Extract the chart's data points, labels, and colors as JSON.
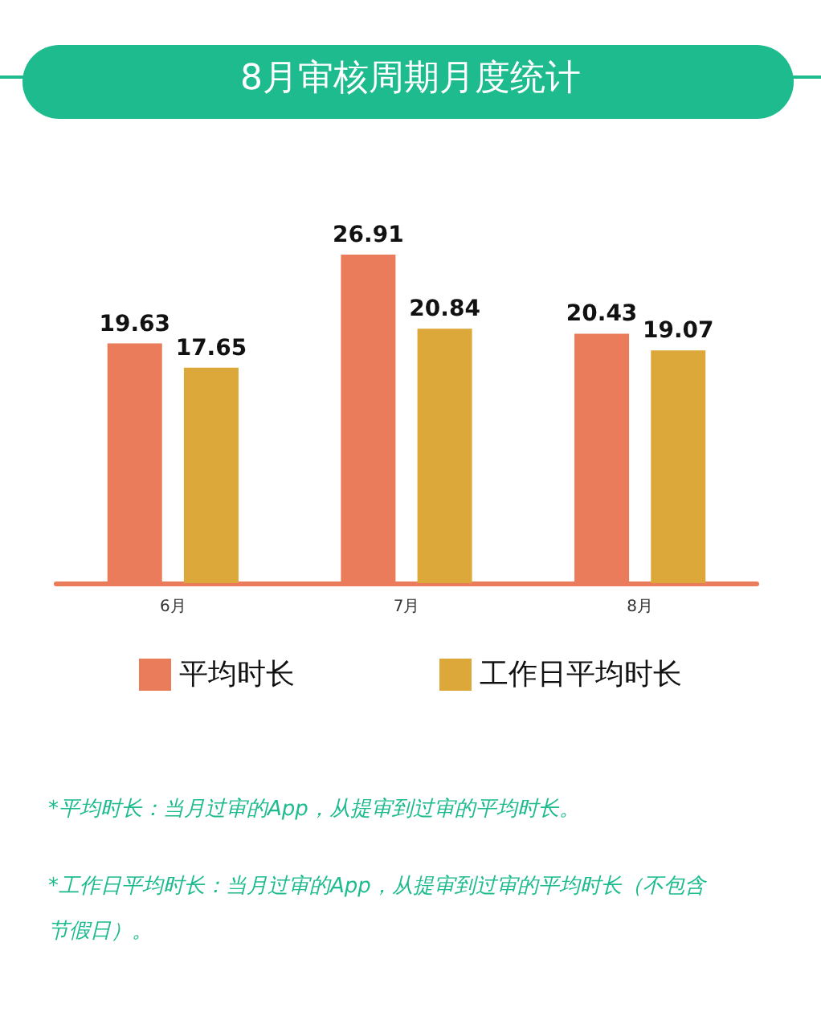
{
  "chart_data": {
    "type": "bar",
    "title": "8月审核周期月度统计",
    "categories": [
      "6月",
      "7月",
      "8月"
    ],
    "series": [
      {
        "name": "平均时长",
        "color": "#ea7b5b",
        "values": [
          19.63,
          26.91,
          20.43
        ]
      },
      {
        "name": "工作日平均时长",
        "color": "#dca83a",
        "values": [
          17.65,
          20.84,
          19.07
        ]
      }
    ],
    "data_labels": true,
    "legend": "bottom",
    "annotations": [
      "*平均时长：当月过审的App，从提审到过审的平均时长。",
      "*工作日平均时长：当月过审的App，从提审到过审的平均时长（不包含节假日）。"
    ]
  }
}
